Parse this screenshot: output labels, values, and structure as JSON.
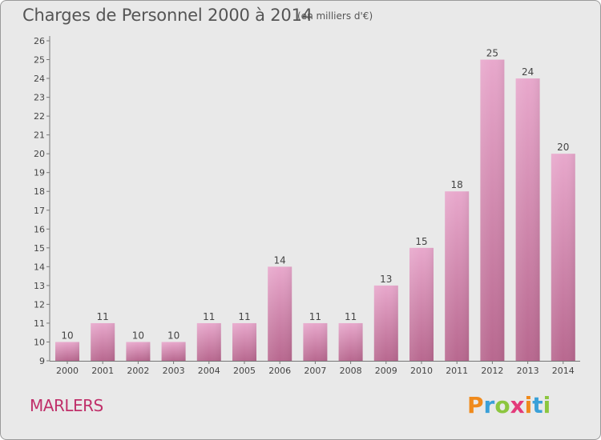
{
  "header": {
    "title": "Charges de Personnel 2000 à 2014",
    "subtitle": "(en milliers d'€)"
  },
  "footer": {
    "commune": "MARLERS",
    "logo_text": "Proxiti"
  },
  "colors": {
    "bar_top": "#e8a8cc",
    "bar_bottom": "#b8688f",
    "background": "#e9e9e9",
    "commune": "#c0306a"
  },
  "chart_data": {
    "type": "bar",
    "categories": [
      "2000",
      "2001",
      "2002",
      "2003",
      "2004",
      "2005",
      "2006",
      "2007",
      "2008",
      "2009",
      "2010",
      "2011",
      "2012",
      "2013",
      "2014"
    ],
    "values": [
      10,
      11,
      10,
      10,
      11,
      11,
      14,
      11,
      11,
      13,
      15,
      18,
      25,
      24,
      20
    ],
    "title": "Charges de Personnel 2000 à 2014",
    "subtitle": "(en milliers d'€)",
    "xlabel": "",
    "ylabel": "",
    "ylim": [
      9,
      26
    ],
    "yticks": [
      9,
      10,
      11,
      12,
      13,
      14,
      15,
      16,
      17,
      18,
      19,
      20,
      21,
      22,
      23,
      24,
      25,
      26
    ],
    "grid": false,
    "data_labels": true
  }
}
